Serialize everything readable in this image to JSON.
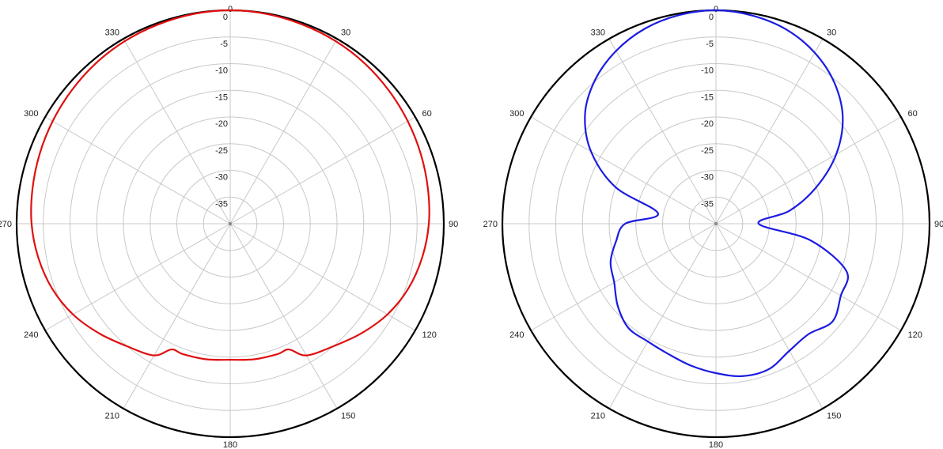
{
  "chart_data": [
    {
      "type": "polar",
      "angle_labels": [
        "0",
        "30",
        "60",
        "90",
        "120",
        "150",
        "180",
        "210",
        "240",
        "270",
        "300",
        "330"
      ],
      "radial_labels": [
        "0",
        "-5",
        "-10",
        "-15",
        "-20",
        "-25",
        "-30",
        "-35"
      ],
      "rlim": [
        -40,
        0
      ],
      "grid": true,
      "series": [
        {
          "color": "#e01010",
          "angles": [
            0,
            10,
            20,
            30,
            40,
            50,
            60,
            70,
            80,
            90,
            100,
            110,
            120,
            130,
            140,
            150,
            155,
            160,
            170,
            180,
            190,
            200,
            205,
            210,
            220,
            230,
            240,
            250,
            260,
            270,
            280,
            290,
            300,
            310,
            320,
            330,
            340,
            350
          ],
          "values": [
            0.0,
            -0.1,
            -0.3,
            -0.5,
            -0.8,
            -1.2,
            -1.6,
            -2.0,
            -2.4,
            -2.8,
            -3.5,
            -4.5,
            -6.0,
            -8.0,
            -10.0,
            -11.5,
            -14.0,
            -14.0,
            -14.2,
            -14.5,
            -14.2,
            -14.0,
            -14.0,
            -11.5,
            -10.0,
            -8.0,
            -6.0,
            -4.5,
            -3.5,
            -2.8,
            -2.4,
            -2.0,
            -1.6,
            -1.2,
            -0.8,
            -0.5,
            -0.3,
            -0.1
          ]
        },
        {
          "color": "#1c1ce0",
          "angles": [
            0,
            10,
            20,
            30,
            40,
            50,
            60,
            70,
            80,
            90,
            100,
            110,
            120,
            130,
            140,
            150,
            160,
            170,
            180,
            190,
            200,
            210,
            220,
            230,
            240,
            250,
            260,
            270,
            280,
            290,
            300,
            310,
            320,
            330,
            340,
            350
          ],
          "values": [
            0.0,
            -0.4,
            -1.3,
            -3.0,
            -5.5,
            -9.0,
            -14.0,
            -20.0,
            -26.0,
            -32.0,
            -22.0,
            -14.0,
            -13.0,
            -11.5,
            -13.0,
            -12.5,
            -11.0,
            -11.0,
            -12.0,
            -13.0,
            -14.0,
            -14.5,
            -14.5,
            -16.0,
            -18.0,
            -19.0,
            -21.0,
            -23.0,
            -29.0,
            -20.0,
            -13.0,
            -8.0,
            -4.8,
            -2.6,
            -1.1,
            -0.3
          ]
        }
      ]
    }
  ]
}
